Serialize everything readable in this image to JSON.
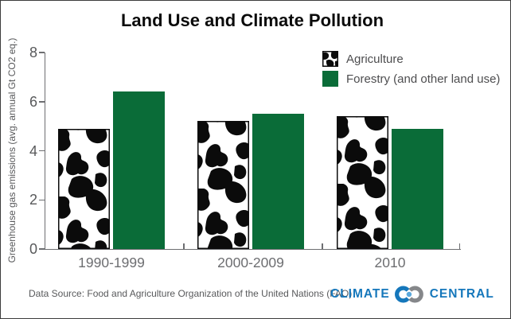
{
  "title": "Land Use and Climate Pollution",
  "legend": {
    "items": [
      {
        "label": "Agriculture",
        "swatch": "cow-pattern"
      },
      {
        "label": "Forestry (and other land use)",
        "swatch": "solid-green"
      }
    ]
  },
  "chart_data": {
    "type": "bar",
    "title": "Land Use and Climate Pollution",
    "categories": [
      "1990-1999",
      "2000-2009",
      "2010"
    ],
    "series": [
      {
        "name": "Agriculture",
        "values": [
          4.9,
          5.2,
          5.4
        ],
        "fill": "cow-pattern"
      },
      {
        "name": "Forestry (and other land use)",
        "values": [
          6.4,
          5.5,
          4.9
        ],
        "fill": "#0a6c38"
      }
    ],
    "xlabel": "",
    "ylabel": "Greenhouse gas emissions (avg. annual Gt CO2 eq.)",
    "ylim": [
      0,
      8
    ],
    "yticks": [
      0,
      2,
      4,
      6,
      8
    ],
    "grid": false,
    "legend_position": "top-right"
  },
  "footer": {
    "source": "Data Source: Food and Agriculture Organization of the United Nations (FAO)",
    "logo": {
      "word_left": "CLIMATE",
      "word_right": "CENTRAL"
    }
  },
  "colors": {
    "forestry_green": "#0a6c38",
    "axis_gray": "#6d6e71",
    "text_gray": "#58595b",
    "logo_blue": "#1577bb",
    "logo_gray": "#85878a",
    "logo_dot_blue": "#5aa8dc"
  }
}
